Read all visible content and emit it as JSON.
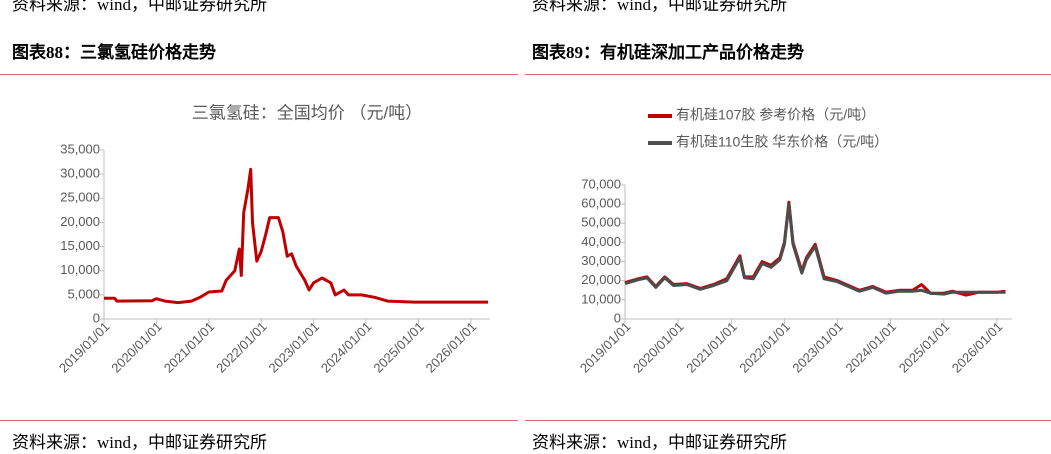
{
  "top_note": [
    "资料来源：wind，中邮证券研究所",
    "资料来源：wind，中邮证券研究所"
  ],
  "headers": [
    "图表88：三氯氢硅价格走势",
    "图表89：有机硅深加工产品价格走势"
  ],
  "footers": [
    "资料来源：wind，中邮证券研究所",
    "资料来源：wind，中邮证券研究所"
  ],
  "chart_data": [
    {
      "type": "line",
      "title": "三氯氢硅：全国均价 （元/吨）",
      "color": "#c00000",
      "x": [
        "2019/01/01",
        "2019/03/15",
        "2019/04/01",
        "2019/12/01",
        "2020/01/01",
        "2020/03/01",
        "2020/06/01",
        "2020/09/01",
        "2020/11/01",
        "2021/01/01",
        "2021/04/01",
        "2021/05/01",
        "2021/07/01",
        "2021/08/01",
        "2021/08/15",
        "2021/09/01",
        "2021/10/01",
        "2021/10/20",
        "2021/11/01",
        "2021/12/01",
        "2022/01/01",
        "2022/02/01",
        "2022/03/01",
        "2022/05/01",
        "2022/06/01",
        "2022/07/01",
        "2022/08/01",
        "2022/09/01",
        "2022/11/01",
        "2022/12/01",
        "2023/01/01",
        "2023/03/01",
        "2023/05/01",
        "2023/06/01",
        "2023/08/01",
        "2023/09/01",
        "2023/12/01",
        "2024/03/01",
        "2024/06/01",
        "2024/12/01",
        "2025/06/01",
        "2026/05/01"
      ],
      "values": [
        4300,
        4300,
        3700,
        3800,
        4200,
        3700,
        3400,
        3700,
        4500,
        5600,
        5800,
        8000,
        10000,
        14500,
        9000,
        22000,
        27000,
        31000,
        20000,
        12000,
        14000,
        17500,
        21000,
        21000,
        18000,
        13000,
        13500,
        11000,
        8000,
        6000,
        7500,
        8500,
        7500,
        5000,
        6000,
        5000,
        5000,
        4500,
        3700,
        3500,
        3500,
        3500
      ],
      "xlim": [
        "2019/01/01",
        "2026/05/15"
      ],
      "xticks": [
        "2019/01/01",
        "2020/01/01",
        "2021/01/01",
        "2022/01/01",
        "2023/01/01",
        "2024/01/01",
        "2025/01/01",
        "2026/01/01"
      ],
      "ylim": [
        0,
        35000
      ],
      "yticks": [
        0,
        {
          "value": 5000,
          "label": "5,000"
        },
        {
          "value": 10000,
          "label": "10,000"
        },
        {
          "value": 15000,
          "label": "15,000"
        },
        {
          "value": 20000,
          "label": "20,000"
        },
        {
          "value": 25000,
          "label": "25,000"
        },
        {
          "value": 30000,
          "label": "30,000"
        },
        {
          "value": 35000,
          "label": "35,000"
        }
      ]
    },
    {
      "type": "line",
      "legend": "top",
      "x": [
        "2019/01/01",
        "2019/04/01",
        "2019/06/01",
        "2019/08/01",
        "2019/10/01",
        "2019/12/01",
        "2020/03/01",
        "2020/06/01",
        "2020/09/01",
        "2020/12/01",
        "2021/03/01",
        "2021/04/01",
        "2021/06/01",
        "2021/08/01",
        "2021/10/01",
        "2021/12/01",
        "2022/01/01",
        "2022/02/01",
        "2022/03/01",
        "2022/05/01",
        "2022/06/01",
        "2022/08/01",
        "2022/10/01",
        "2023/01/01",
        "2023/03/01",
        "2023/06/01",
        "2023/09/01",
        "2023/12/01",
        "2024/03/01",
        "2024/06/01",
        "2024/08/01",
        "2024/10/01",
        "2025/01/01",
        "2025/03/01",
        "2025/06/01",
        "2025/09/01",
        "2026/01/01",
        "2026/03/01"
      ],
      "series": [
        {
          "name": "有机硅107胶 参考价格（元/吨）",
          "color": "#c00000",
          "values": [
            19000,
            21000,
            22000,
            17000,
            22000,
            18000,
            18500,
            16000,
            18000,
            21000,
            33000,
            22000,
            22000,
            30000,
            28000,
            32000,
            40000,
            61000,
            40000,
            25000,
            32000,
            39000,
            22000,
            20000,
            18000,
            15000,
            17000,
            14000,
            15000,
            15000,
            18000,
            13500,
            13500,
            14500,
            12500,
            14000,
            14000,
            14500
          ]
        },
        {
          "name": "有机硅110生胶 华东价格（元/吨）",
          "color": "#4d4d4d",
          "values": [
            18500,
            20500,
            21500,
            16500,
            21500,
            17500,
            18000,
            15500,
            17500,
            20000,
            32000,
            21500,
            21000,
            29000,
            27000,
            31000,
            39000,
            60000,
            39000,
            24000,
            31000,
            38000,
            21000,
            19500,
            17500,
            14500,
            16500,
            13500,
            14500,
            14500,
            15000,
            13500,
            13000,
            14000,
            14000,
            14000,
            14000,
            14000
          ]
        }
      ],
      "xlim": [
        "2019/01/01",
        "2026/04/15"
      ],
      "xticks": [
        "2019/01/01",
        "2020/01/01",
        "2021/01/01",
        "2022/01/01",
        "2023/01/01",
        "2024/01/01",
        "2025/01/01",
        "2026/01/01"
      ],
      "ylim": [
        0,
        70000
      ],
      "yticks": [
        0,
        {
          "value": 10000,
          "label": "10,000"
        },
        {
          "value": 20000,
          "label": "20,000"
        },
        {
          "value": 30000,
          "label": "30,000"
        },
        {
          "value": 40000,
          "label": "40,000"
        },
        {
          "value": 50000,
          "label": "50,000"
        },
        {
          "value": 60000,
          "label": "60,000"
        },
        {
          "value": 70000,
          "label": "70,000"
        }
      ]
    }
  ]
}
